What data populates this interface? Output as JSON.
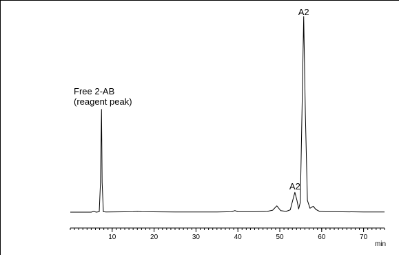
{
  "chart_data": {
    "type": "line",
    "title": "",
    "xlabel": "min",
    "ylabel": "",
    "xlim": [
      0,
      75
    ],
    "ylim": [
      0,
      1.0
    ],
    "grid": false,
    "x_ticks": [
      10,
      20,
      30,
      40,
      50,
      60,
      70
    ],
    "x_tick_labels": [
      "10",
      "20",
      "30",
      "40",
      "50",
      "60",
      "70"
    ],
    "series": [
      {
        "color": "#000000",
        "points": [
          [
            0.0,
            0.0
          ],
          [
            5.0,
            0.0
          ],
          [
            5.6,
            0.004
          ],
          [
            6.2,
            0.0
          ],
          [
            6.9,
            0.002
          ],
          [
            7.2,
            0.15
          ],
          [
            7.45,
            0.52
          ],
          [
            7.6,
            0.15
          ],
          [
            7.9,
            0.002
          ],
          [
            8.5,
            0.001
          ],
          [
            15.0,
            0.002
          ],
          [
            16.0,
            0.004
          ],
          [
            17.0,
            0.002
          ],
          [
            25.0,
            0.001
          ],
          [
            35.0,
            0.001
          ],
          [
            38.5,
            0.002
          ],
          [
            39.3,
            0.008
          ],
          [
            40.0,
            0.002
          ],
          [
            44.0,
            0.002
          ],
          [
            47.0,
            0.004
          ],
          [
            48.3,
            0.01
          ],
          [
            49.3,
            0.032
          ],
          [
            50.2,
            0.008
          ],
          [
            51.5,
            0.004
          ],
          [
            52.5,
            0.012
          ],
          [
            53.1,
            0.06
          ],
          [
            53.6,
            0.1
          ],
          [
            54.1,
            0.06
          ],
          [
            54.5,
            0.016
          ],
          [
            54.9,
            0.05
          ],
          [
            55.3,
            0.5
          ],
          [
            55.7,
            0.99
          ],
          [
            56.1,
            0.5
          ],
          [
            56.6,
            0.06
          ],
          [
            57.2,
            0.02
          ],
          [
            58.0,
            0.03
          ],
          [
            58.6,
            0.014
          ],
          [
            59.5,
            0.004
          ],
          [
            61.0,
            0.002
          ],
          [
            63.0,
            0.002
          ],
          [
            70.0,
            0.001
          ],
          [
            75.0,
            0.001
          ]
        ]
      }
    ],
    "annotations": [
      {
        "text": "Free 2-AB",
        "x": 7.45
      },
      {
        "text": "(reagent peak)",
        "x": 7.45
      },
      {
        "text": "A2",
        "x": 53.6
      },
      {
        "text": "A2",
        "x": 55.7
      }
    ]
  }
}
